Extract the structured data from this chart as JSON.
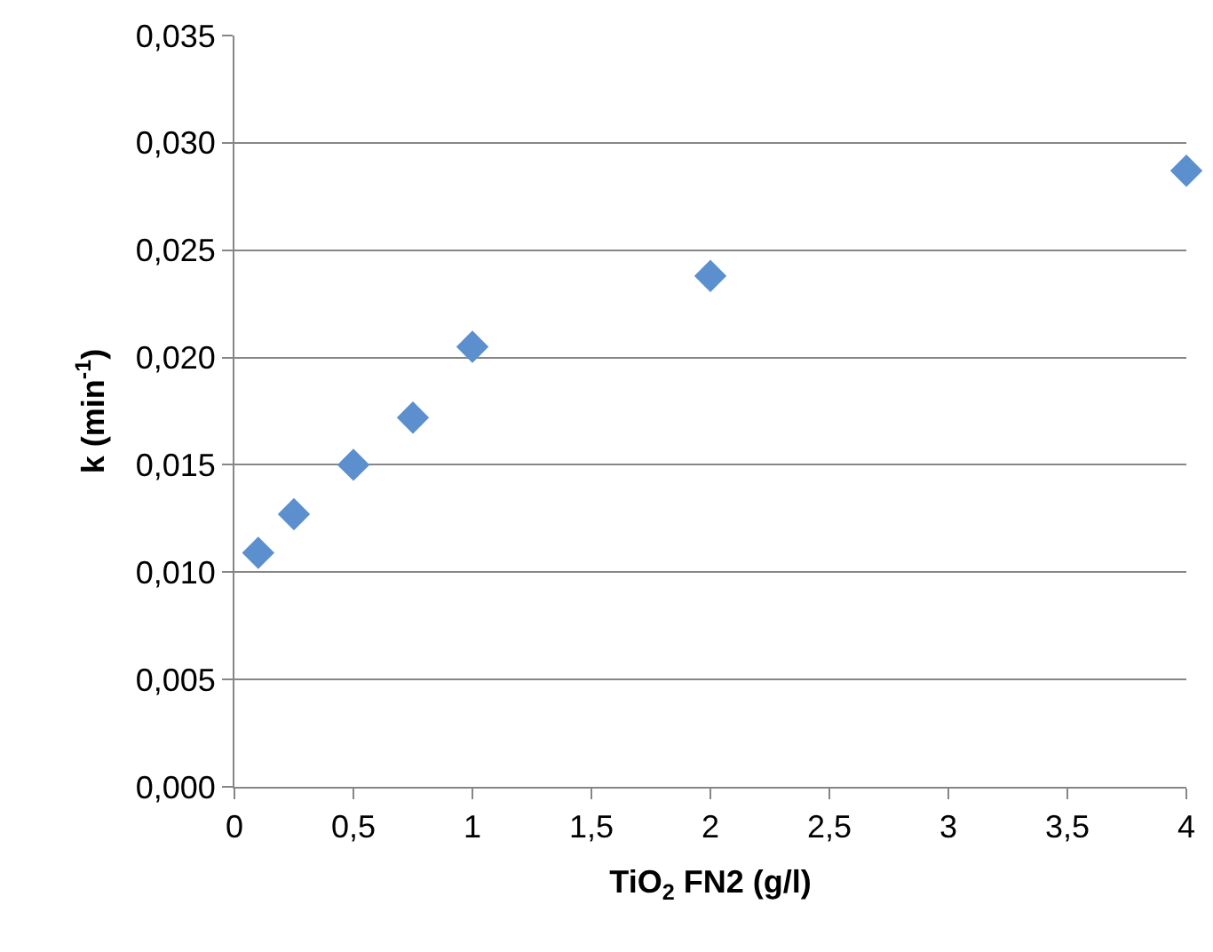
{
  "chart_data": {
    "type": "scatter",
    "xlabel": "TiO$_{2}$ FN2 (g/l)",
    "ylabel": "k (min$^{-1}$)",
    "x": [
      0.1,
      0.25,
      0.5,
      0.75,
      1,
      2,
      4
    ],
    "series": [
      {
        "color": "#5b8fcd",
        "values": [
          0.0109,
          0.0127,
          0.015,
          0.0172,
          0.0205,
          0.0238,
          0.0287
        ]
      }
    ],
    "xlim": [
      0,
      4
    ],
    "ylim": [
      0,
      0.035
    ],
    "xticks": [
      0,
      {
        "value": 0.5,
        "label": "0,5"
      },
      1,
      {
        "value": 1.5,
        "label": "1,5"
      },
      2,
      {
        "value": 2.5,
        "label": "2,5"
      },
      3,
      {
        "value": 3.5,
        "label": "3,5"
      },
      4
    ],
    "yticks": [
      {
        "value": 0,
        "label": "0,000"
      },
      {
        "value": 0.005,
        "label": "0,005"
      },
      {
        "value": 0.01,
        "label": "0,010"
      },
      {
        "value": 0.015,
        "label": "0,015"
      },
      {
        "value": 0.02,
        "label": "0,020"
      },
      {
        "value": 0.025,
        "label": "0,025"
      },
      {
        "value": 0.03,
        "label": "0,030"
      },
      {
        "value": 0.035,
        "label": "0,035"
      }
    ],
    "grid": "y",
    "marker": "diamond"
  }
}
